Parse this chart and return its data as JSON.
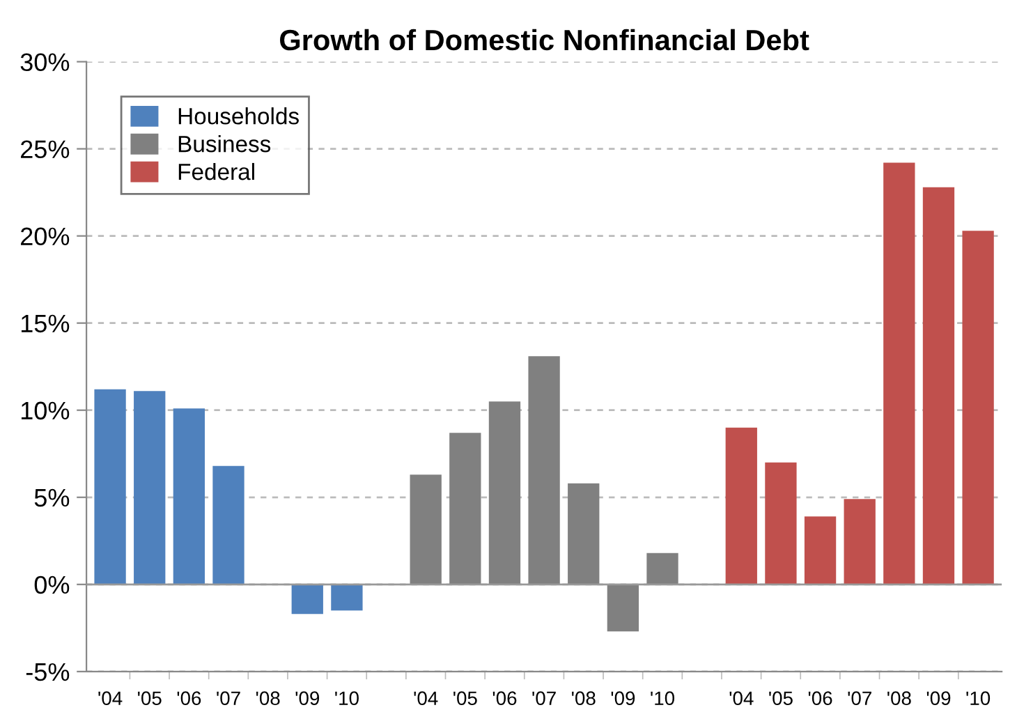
{
  "chart_data": {
    "type": "bar",
    "title": "Growth of Domestic Nonfinancial Debt",
    "categories": [
      "'04",
      "'05",
      "'06",
      "'07",
      "'08",
      "'09",
      "'10",
      null,
      "'04",
      "'05",
      "'06",
      "'07",
      "'08",
      "'09",
      "'10",
      null,
      "'04",
      "'05",
      "'06",
      "'07",
      "'08",
      "'09",
      "'10"
    ],
    "series": [
      {
        "name": "Households",
        "color": "#4f81bd",
        "values": [
          11.2,
          11.1,
          10.1,
          6.8,
          0,
          -1.7,
          -1.5,
          null,
          null,
          null,
          null,
          null,
          null,
          null,
          null,
          null,
          null,
          null,
          null,
          null,
          null,
          null,
          null
        ]
      },
      {
        "name": "Business",
        "color": "#808080",
        "values": [
          null,
          null,
          null,
          null,
          null,
          null,
          null,
          null,
          6.3,
          8.7,
          10.5,
          13.1,
          5.8,
          -2.7,
          1.8,
          null,
          null,
          null,
          null,
          null,
          null,
          null,
          null
        ]
      },
      {
        "name": "Federal",
        "color": "#c0504d",
        "values": [
          null,
          null,
          null,
          null,
          null,
          null,
          null,
          null,
          null,
          null,
          null,
          null,
          null,
          null,
          null,
          null,
          9.0,
          7.0,
          3.9,
          4.9,
          24.2,
          22.8,
          20.3
        ]
      }
    ],
    "ylim": [
      -5,
      30
    ],
    "yticks": [
      {
        "value": -5,
        "label": "-5%"
      },
      {
        "value": 0,
        "label": "0%"
      },
      {
        "value": 5,
        "label": "5%"
      },
      {
        "value": 10,
        "label": "10%"
      },
      {
        "value": 15,
        "label": "15%"
      },
      {
        "value": 20,
        "label": "20%"
      },
      {
        "value": 25,
        "label": "25%"
      },
      {
        "value": 30,
        "label": "30%"
      }
    ],
    "grid": "y",
    "legend": "top left"
  }
}
